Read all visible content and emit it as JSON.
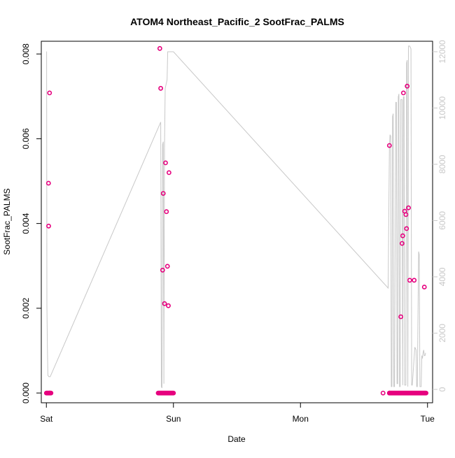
{
  "chart_data": {
    "type": "scatter",
    "title": "ATOM4 Northeast_Pacific_2 SootFrac_PALMS",
    "xlabel": "Date",
    "ylabel": "SootFrac_PALMS",
    "x_ticks": [
      "Sat",
      "Sun",
      "Mon",
      "Tue"
    ],
    "x_tick_values": [
      0,
      1,
      2,
      3
    ],
    "xlim": [
      -0.04,
      3.04
    ],
    "y_ticks": [
      "0.000",
      "0.002",
      "0.004",
      "0.006",
      "0.008"
    ],
    "y_tick_values": [
      0,
      0.002,
      0.004,
      0.006,
      0.008
    ],
    "ylim": [
      -0.00023,
      0.0083
    ],
    "y2_ticks": [
      "0",
      "2000",
      "4000",
      "6000",
      "8000",
      "10000",
      "12000"
    ],
    "y2_tick_values": [
      0,
      2000,
      4000,
      6000,
      8000,
      10000,
      12000
    ],
    "y2lim": [
      -475,
      12372
    ],
    "grid": false,
    "series": [
      {
        "axis": "left",
        "style": "open-circles",
        "color": "#e6007e",
        "x": [
          0.017,
          0.018,
          0.025,
          0.026,
          0.893,
          0.9,
          0.915,
          0.92,
          0.93,
          0.938,
          0.945,
          0.953,
          0.96,
          0.965,
          2.7,
          2.79,
          2.8,
          2.805,
          2.81,
          2.82,
          2.83,
          2.835,
          2.84,
          2.85,
          2.86,
          2.895,
          2.975,
          2.65,
          2.7
        ],
        "y": [
          0.00495,
          0.00394,
          0.00708,
          0,
          0.00813,
          0.00719,
          0.0029,
          0.00471,
          0.00211,
          0.00543,
          0.00428,
          0.00299,
          0.00206,
          0.0052,
          0.00584,
          0.0018,
          0.00353,
          0.00371,
          0.00708,
          0.00429,
          0.00421,
          0.00388,
          0.00724,
          0.00437,
          0.00266,
          0.00266,
          0.0025,
          0,
          0
        ],
        "zero_runs": [
          [
            0.0,
            0.04
          ],
          [
            0.88,
            1.0
          ],
          [
            2.7,
            2.99
          ]
        ]
      },
      {
        "axis": "right",
        "style": "line",
        "color": "#c8c8c8",
        "x": [
          0.0,
          0.002,
          0.004,
          0.008,
          0.012,
          0.02,
          0.03,
          0.9,
          0.9,
          0.905,
          0.91,
          0.915,
          0.92,
          0.925,
          0.93,
          0.935,
          0.94,
          0.945,
          0.95,
          0.955,
          0.96,
          0.965,
          0.97,
          0.975,
          0.98,
          0.985,
          0.99,
          0.995,
          1.0,
          1.0,
          2.69,
          2.7,
          2.705,
          2.71,
          2.715,
          2.72,
          2.725,
          2.73,
          2.735,
          2.74,
          2.75,
          2.755,
          2.76,
          2.765,
          2.77,
          2.775,
          2.78,
          2.785,
          2.79,
          2.8,
          2.805,
          2.81,
          2.815,
          2.82,
          2.83,
          2.835,
          2.84,
          2.845,
          2.85,
          2.86,
          2.87,
          2.875,
          2.88,
          2.9,
          2.91,
          2.915,
          2.92,
          2.93,
          2.935,
          2.94,
          2.95,
          2.955,
          2.96,
          2.965,
          2.97,
          2.975,
          2.98,
          2.985
        ],
        "y": [
          12000,
          12000,
          3000,
          1500,
          500,
          450,
          450,
          9500,
          9500,
          100,
          50,
          8700,
          8800,
          200,
          8600,
          10700,
          10800,
          10900,
          11000,
          12000,
          12000,
          12000,
          12000,
          12000,
          12000,
          12000,
          12000,
          12000,
          12000,
          12000,
          3600,
          8600,
          9050,
          9000,
          100,
          100,
          9700,
          9800,
          100,
          100,
          10200,
          10200,
          200,
          200,
          10400,
          10500,
          100,
          100,
          10300,
          10300,
          150,
          10400,
          10400,
          150,
          150,
          11600,
          11700,
          100,
          12200,
          12200,
          12100,
          150,
          150,
          1500,
          1400,
          100,
          100,
          4900,
          4800,
          100,
          100,
          1200,
          1100,
          1300,
          1400,
          1200,
          1200,
          1300
        ]
      }
    ]
  }
}
